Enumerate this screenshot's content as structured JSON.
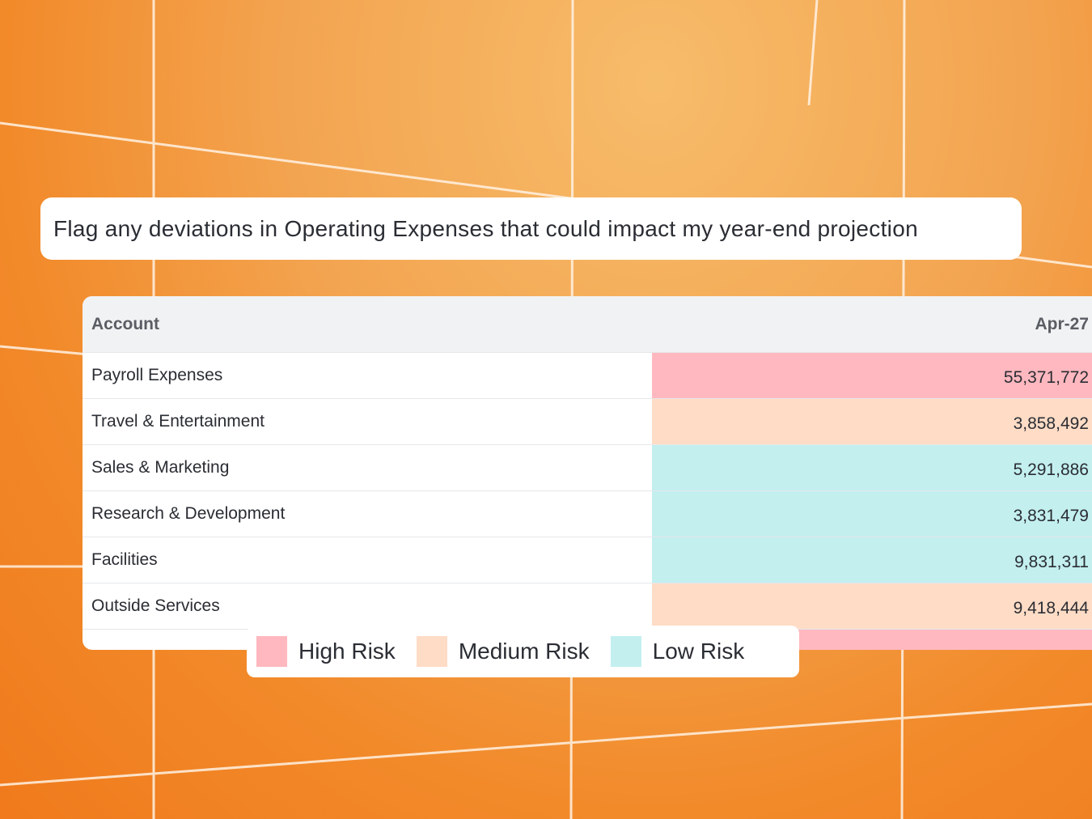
{
  "prompt": {
    "text": "Flag any deviations in Operating Expenses that could impact my year-end projection"
  },
  "table": {
    "columns": [
      "Account",
      "Apr-27"
    ],
    "rows": [
      {
        "account": "Payroll Expenses",
        "value": "55,371,772",
        "color": "#ffb8bf"
      },
      {
        "account": "Travel & Entertainment",
        "value": "3,858,492",
        "color": "#ffdcc6"
      },
      {
        "account": "Sales & Marketing",
        "value": "5,291,886",
        "color": "#c3efef"
      },
      {
        "account": "Research & Development",
        "value": "3,831,479",
        "color": "#c3efef"
      },
      {
        "account": "Facilities",
        "value": "9,831,311",
        "color": "#c3efef"
      },
      {
        "account": "Outside Services",
        "value": "9,418,444",
        "color": "#ffdcc6"
      },
      {
        "color": "#ffb8bf"
      }
    ]
  },
  "legend": {
    "items": [
      {
        "label": "High Risk",
        "color": "#ffb8bf"
      },
      {
        "label": "Medium Risk",
        "color": "#ffdcc6"
      },
      {
        "label": "Low Risk",
        "color": "#c3efef"
      }
    ]
  }
}
